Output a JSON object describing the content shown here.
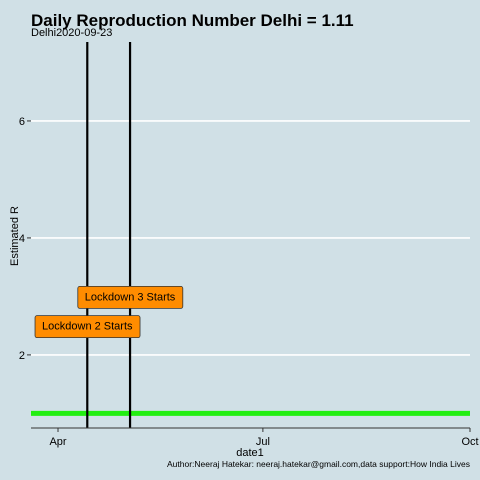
{
  "chart_data": {
    "type": "line",
    "title": "Daily Reproduction Number Delhi = 1.11",
    "subtitle": "Delhi2020-09-23",
    "xlabel": "date1",
    "ylabel": "Estimated R",
    "caption": "Author:Neeraj Hatekar: neeraj.hatekar@gmail.com,data support:How India Lives",
    "xlim": [
      "2020-03-20",
      "2020-10-01"
    ],
    "ylim": [
      0.75,
      7.35
    ],
    "x_ticks": [
      {
        "date": "2020-04-01",
        "label": "Apr"
      },
      {
        "date": "2020-07-01",
        "label": "Jul"
      },
      {
        "date": "2020-10-01",
        "label": "Oct"
      }
    ],
    "y_ticks": [
      2,
      4,
      6
    ],
    "hlines": [
      {
        "y": 1,
        "color": "#22ee11"
      }
    ],
    "vlines": [
      {
        "x": "2020-04-14",
        "color": "#000000"
      },
      {
        "x": "2020-05-03",
        "color": "#000000"
      }
    ],
    "annotations": [
      {
        "label": "Lockdown 2 Starts",
        "x": "2020-04-14",
        "y": 2.5,
        "fill": "#ff8c00"
      },
      {
        "label": "Lockdown 3 Starts",
        "x": "2020-05-03",
        "y": 3.0,
        "fill": "#ff8c00"
      }
    ],
    "grid": true,
    "colors": {
      "background": "#d0e0e6",
      "grid": "#ffffff"
    }
  }
}
